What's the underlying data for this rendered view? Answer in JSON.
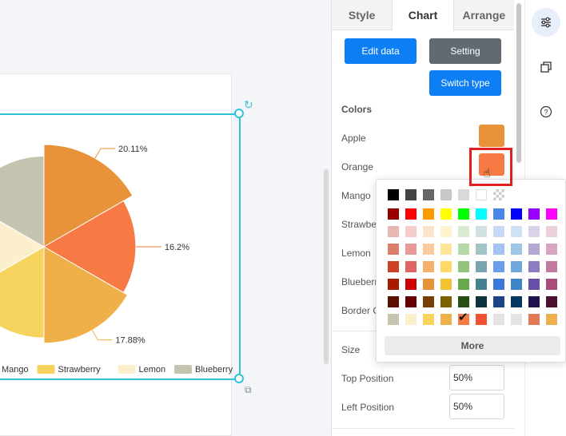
{
  "tabs": [
    {
      "label": "Style",
      "active": false
    },
    {
      "label": "Chart",
      "active": true
    },
    {
      "label": "Arrange",
      "active": false
    }
  ],
  "buttons": {
    "edit_data": "Edit data",
    "setting": "Setting",
    "switch_type": "Switch type",
    "more": "More"
  },
  "colors_section": {
    "title": "Colors",
    "items": [
      {
        "label": "Apple",
        "color": "#e8923a"
      },
      {
        "label": "Orange",
        "color": "#f77a44"
      },
      {
        "label": "Mango",
        "color": ""
      },
      {
        "label": "Strawbe",
        "color": ""
      },
      {
        "label": "Lemon",
        "color": ""
      },
      {
        "label": "Blueberr",
        "color": ""
      },
      {
        "label": "Border C",
        "color": ""
      }
    ]
  },
  "layout_section": {
    "size_label": "Size",
    "top_position_label": "Top Position",
    "top_position_value": "50%",
    "left_position_label": "Left Position",
    "left_position_value": "50%"
  },
  "toolbar": [
    {
      "icon": "sliders-icon",
      "active": true
    },
    {
      "icon": "copy-icon",
      "active": false
    },
    {
      "icon": "help-icon",
      "active": false
    }
  ],
  "palette": [
    [
      "#000000",
      "#434343",
      "#666666",
      "#c8c8c8",
      "#d9d9d9",
      "#ffffff",
      "transparent"
    ],
    [
      "#980000",
      "#ff0000",
      "#ff9900",
      "#ffff00",
      "#00ff00",
      "#00ffff",
      "#4a86e8",
      "#0000ff",
      "#9900ff",
      "#ff00ff"
    ],
    [
      "#e6b8af",
      "#f4cccc",
      "#fce5cd",
      "#fff2cc",
      "#d9ead3",
      "#d0e0e3",
      "#c9daf8",
      "#cfe2f3",
      "#d9d2e9",
      "#ead1dc"
    ],
    [
      "#dd7e6b",
      "#ea9999",
      "#f9cb9c",
      "#ffe599",
      "#b6d7a8",
      "#a2c4c9",
      "#a4c2f4",
      "#9fc5e8",
      "#b4a7d6",
      "#d5a6bd"
    ],
    [
      "#cc4125",
      "#e06666",
      "#f6b26b",
      "#ffd966",
      "#93c47d",
      "#76a5af",
      "#6d9eeb",
      "#6fa8dc",
      "#8e7cc3",
      "#c27ba0"
    ],
    [
      "#a61c00",
      "#cc0000",
      "#e69138",
      "#f1c232",
      "#6aa84f",
      "#45818e",
      "#3c78d8",
      "#3d85c6",
      "#674ea7",
      "#a64d79"
    ],
    [
      "#5b0f00",
      "#660000",
      "#783f04",
      "#7f6000",
      "#274e13",
      "#0c343d",
      "#1c4587",
      "#073763",
      "#20124d",
      "#4c1130"
    ],
    [
      "#c4c4b0",
      "#fcf0cc",
      "#f5d35e",
      "#efb04a",
      "#f77a44",
      "#f25234",
      "#e3e3e6",
      "#e3e3e6",
      "#e07a53",
      "#edb04c"
    ]
  ],
  "palette_selected": {
    "row": 7,
    "col": 4
  },
  "chart_data": {
    "type": "pie",
    "subtype": "rose",
    "series": [
      {
        "name": "Apple",
        "value": 20.11,
        "color": "#e8923a"
      },
      {
        "name": "Orange",
        "value": 16.2,
        "color": "#f77a44"
      },
      {
        "name": "Mango",
        "value": 17.88,
        "color": "#efb04a"
      },
      {
        "name": "Strawberry",
        "value": 16,
        "color": "#f5d35e"
      },
      {
        "name": "Lemon",
        "value": 14,
        "color": "#fcf0cc"
      },
      {
        "name": "Blueberry",
        "value": 15.81,
        "color": "#c4c4b0"
      }
    ],
    "data_labels": [
      "20.11%",
      "16.2%",
      "17.88%"
    ],
    "legend": [
      "Mango",
      "Strawberry",
      "Lemon",
      "Blueberry"
    ],
    "legend_position": "bottom"
  }
}
